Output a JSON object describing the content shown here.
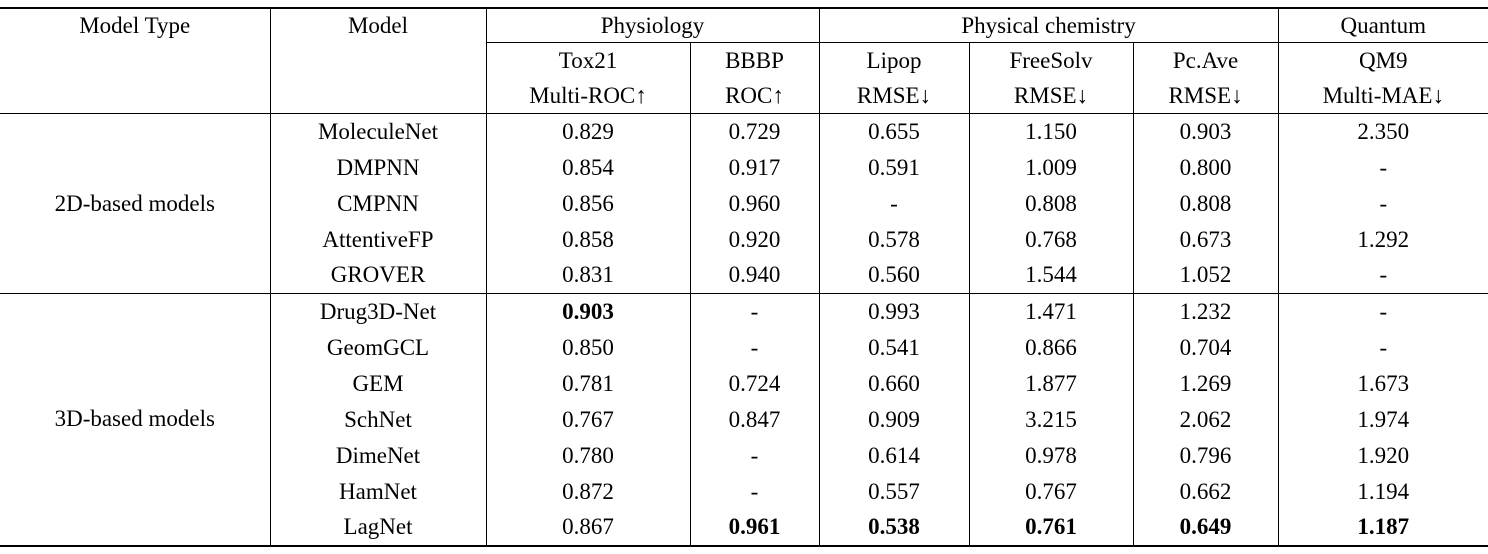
{
  "meta": {
    "background_color": "#ffffff",
    "text_color": "#000000",
    "rule_color": "#000000"
  },
  "table": {
    "header": {
      "col1": "Model Type",
      "col2": "Model",
      "groups": [
        {
          "label": "Physiology",
          "span": 2
        },
        {
          "label": "Physical chemistry",
          "span": 3
        },
        {
          "label": "Quantum",
          "span": 1
        }
      ],
      "metrics": [
        {
          "dataset": "Tox21",
          "metric": "Multi-ROC↑"
        },
        {
          "dataset": "BBBP",
          "metric": "ROC↑"
        },
        {
          "dataset": "Lipop",
          "metric": "RMSE↓"
        },
        {
          "dataset": "FreeSolv",
          "metric": "RMSE↓"
        },
        {
          "dataset": "Pc.Ave",
          "metric": "RMSE↓"
        },
        {
          "dataset": "QM9",
          "metric": "Multi-MAE↓"
        }
      ]
    },
    "sections": [
      {
        "type_label": "2D-based models",
        "rows": [
          {
            "model": "MoleculeNet",
            "values": [
              "0.829",
              "0.729",
              "0.655",
              "1.150",
              "0.903",
              "2.350"
            ],
            "bold": []
          },
          {
            "model": "DMPNN",
            "values": [
              "0.854",
              "0.917",
              "0.591",
              "1.009",
              "0.800",
              "-"
            ],
            "bold": []
          },
          {
            "model": "CMPNN",
            "values": [
              "0.856",
              "0.960",
              "-",
              "0.808",
              "0.808",
              "-"
            ],
            "bold": []
          },
          {
            "model": "AttentiveFP",
            "values": [
              "0.858",
              "0.920",
              "0.578",
              "0.768",
              "0.673",
              "1.292"
            ],
            "bold": []
          },
          {
            "model": "GROVER",
            "values": [
              "0.831",
              "0.940",
              "0.560",
              "1.544",
              "1.052",
              "-"
            ],
            "bold": []
          }
        ]
      },
      {
        "type_label": "3D-based models",
        "rows": [
          {
            "model": "Drug3D-Net",
            "values": [
              "0.903",
              "-",
              "0.993",
              "1.471",
              "1.232",
              "-"
            ],
            "bold": [
              0
            ]
          },
          {
            "model": "GeomGCL",
            "values": [
              "0.850",
              "-",
              "0.541",
              "0.866",
              "0.704",
              "-"
            ],
            "bold": []
          },
          {
            "model": "GEM",
            "values": [
              "0.781",
              "0.724",
              "0.660",
              "1.877",
              "1.269",
              "1.673"
            ],
            "bold": []
          },
          {
            "model": "SchNet",
            "values": [
              "0.767",
              "0.847",
              "0.909",
              "3.215",
              "2.062",
              "1.974"
            ],
            "bold": []
          },
          {
            "model": "DimeNet",
            "values": [
              "0.780",
              "-",
              "0.614",
              "0.978",
              "0.796",
              "1.920"
            ],
            "bold": []
          },
          {
            "model": "HamNet",
            "values": [
              "0.872",
              "-",
              "0.557",
              "0.767",
              "0.662",
              "1.194"
            ],
            "bold": []
          },
          {
            "model": "LagNet",
            "values": [
              "0.867",
              "0.961",
              "0.538",
              "0.761",
              "0.649",
              "1.187"
            ],
            "bold": [
              1,
              2,
              3,
              4,
              5
            ]
          }
        ]
      }
    ]
  },
  "chart_data": {
    "type": "table",
    "title": "",
    "columns": [
      "Model Type",
      "Model",
      "Tox21 Multi-ROC↑",
      "BBBP ROC↑",
      "Lipop RMSE↓",
      "FreeSolv RMSE↓",
      "Pc.Ave RMSE↓",
      "QM9 Multi-MAE↓"
    ],
    "rows": [
      [
        "2D-based models",
        "MoleculeNet",
        "0.829",
        "0.729",
        "0.655",
        "1.150",
        "0.903",
        "2.350"
      ],
      [
        "2D-based models",
        "DMPNN",
        "0.854",
        "0.917",
        "0.591",
        "1.009",
        "0.800",
        "-"
      ],
      [
        "2D-based models",
        "CMPNN",
        "0.856",
        "0.960",
        "-",
        "0.808",
        "0.808",
        "-"
      ],
      [
        "2D-based models",
        "AttentiveFP",
        "0.858",
        "0.920",
        "0.578",
        "0.768",
        "0.673",
        "1.292"
      ],
      [
        "2D-based models",
        "GROVER",
        "0.831",
        "0.940",
        "0.560",
        "1.544",
        "1.052",
        "-"
      ],
      [
        "3D-based models",
        "Drug3D-Net",
        "0.903",
        "-",
        "0.993",
        "1.471",
        "1.232",
        "-"
      ],
      [
        "3D-based models",
        "GeomGCL",
        "0.850",
        "-",
        "0.541",
        "0.866",
        "0.704",
        "-"
      ],
      [
        "3D-based models",
        "GEM",
        "0.781",
        "0.724",
        "0.660",
        "1.877",
        "1.269",
        "1.673"
      ],
      [
        "3D-based models",
        "SchNet",
        "0.767",
        "0.847",
        "0.909",
        "3.215",
        "2.062",
        "1.974"
      ],
      [
        "3D-based models",
        "DimeNet",
        "0.780",
        "-",
        "0.614",
        "0.978",
        "0.796",
        "1.920"
      ],
      [
        "3D-based models",
        "HamNet",
        "0.872",
        "-",
        "0.557",
        "0.767",
        "0.662",
        "1.194"
      ],
      [
        "3D-based models",
        "LagNet",
        "0.867",
        "0.961",
        "0.538",
        "0.761",
        "0.649",
        "1.187"
      ]
    ]
  }
}
